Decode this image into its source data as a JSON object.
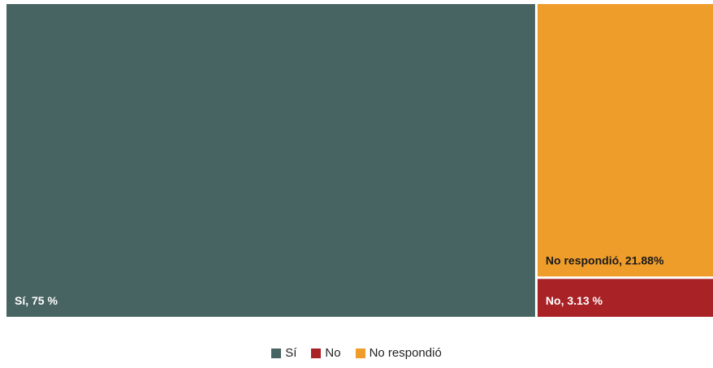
{
  "chart_data": {
    "type": "treemap",
    "title": "",
    "series": [
      {
        "name": "Sí",
        "value": 75,
        "label": "Sí, 75 %",
        "color": "#476462",
        "label_color": "#ffffff"
      },
      {
        "name": "No respondió",
        "value": 21.88,
        "label": "No respondió, 21.88%",
        "color": "#ee9c2a",
        "label_color": "#1a1a1a"
      },
      {
        "name": "No",
        "value": 3.13,
        "label": "No, 3.13 %",
        "color": "#a82226",
        "label_color": "#ffffff"
      }
    ],
    "legend": {
      "placement": "bottom-center",
      "items": [
        {
          "label": "Sí",
          "color": "#476462"
        },
        {
          "label": "No",
          "color": "#a82226"
        },
        {
          "label": "No respondió",
          "color": "#ee9c2a"
        }
      ]
    }
  }
}
